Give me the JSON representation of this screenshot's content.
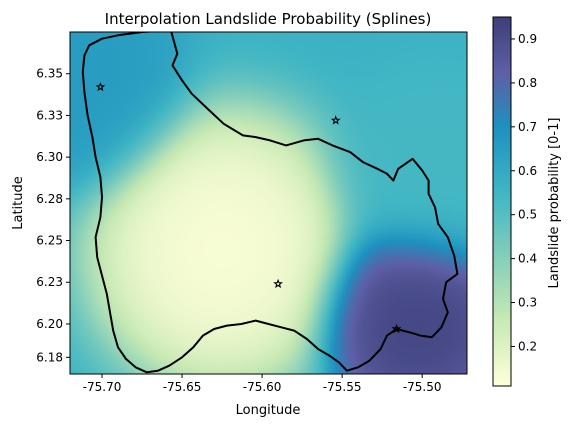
{
  "chart_data": {
    "type": "heatmap",
    "title": "Interpolation Landslide Probability (Splines)",
    "xlabel": "Longitude",
    "ylabel": "Latitude",
    "xlim": [
      -75.72,
      -75.472
    ],
    "ylim": [
      6.17,
      6.375
    ],
    "x_ticks": [
      {
        "value": -75.7,
        "label": "-75.70"
      },
      {
        "value": -75.65,
        "label": "-75.65"
      },
      {
        "value": -75.6,
        "label": "-75.60"
      },
      {
        "value": -75.55,
        "label": "-75.55"
      },
      {
        "value": -75.5,
        "label": "-75.50"
      }
    ],
    "y_ticks": [
      {
        "value": 6.18,
        "label": "6.18"
      },
      {
        "value": 6.2,
        "label": "6.20"
      },
      {
        "value": 6.225,
        "label": "6.23"
      },
      {
        "value": 6.25,
        "label": "6.25"
      },
      {
        "value": 6.275,
        "label": "6.28"
      },
      {
        "value": 6.3,
        "label": "6.30"
      },
      {
        "value": 6.325,
        "label": "6.33"
      },
      {
        "value": 6.35,
        "label": "6.35"
      }
    ],
    "colorbar": {
      "label": "Landslide probability [0-1]",
      "range": [
        0.11,
        0.95
      ],
      "ticks": [
        "0.2",
        "0.3",
        "0.4",
        "0.5",
        "0.6",
        "0.7",
        "0.8",
        "0.9"
      ],
      "colormap": "YlGnBu-like",
      "colors": [
        "#ffffd9",
        "#c7e9b4",
        "#7fcdbb",
        "#41b6c4",
        "#1d91c0",
        "#5e5fa6",
        "#3c3f78"
      ]
    },
    "points": [
      {
        "x": -75.701,
        "y": 6.342
      },
      {
        "x": -75.554,
        "y": 6.322
      },
      {
        "x": -75.59,
        "y": 6.224
      },
      {
        "x": -75.516,
        "y": 6.197
      }
    ],
    "field_centers": [
      {
        "x": -75.625,
        "y": 6.245,
        "value": 0.11,
        "spread": 0.05
      },
      {
        "x": -75.505,
        "y": 6.205,
        "value": 0.93,
        "spread": 0.035
      },
      {
        "x": -75.715,
        "y": 6.345,
        "value": 0.63,
        "spread": 0.04
      },
      {
        "x": -75.49,
        "y": 6.29,
        "value": 0.52,
        "spread": 0.04
      }
    ],
    "boundary": [
      [
        -75.708,
        6.367
      ],
      [
        -75.7,
        6.371
      ],
      [
        -75.69,
        6.373
      ],
      [
        -75.675,
        6.375
      ],
      [
        -75.657,
        6.376
      ],
      [
        -75.653,
        6.362
      ],
      [
        -75.656,
        6.355
      ],
      [
        -75.65,
        6.346
      ],
      [
        -75.644,
        6.338
      ],
      [
        -75.633,
        6.328
      ],
      [
        -75.624,
        6.32
      ],
      [
        -75.612,
        6.313
      ],
      [
        -75.604,
        6.312
      ],
      [
        -75.595,
        6.31
      ],
      [
        -75.585,
        6.307
      ],
      [
        -75.574,
        6.31
      ],
      [
        -75.565,
        6.311
      ],
      [
        -75.556,
        6.307
      ],
      [
        -75.545,
        6.303
      ],
      [
        -75.537,
        6.297
      ],
      [
        -75.528,
        6.293
      ],
      [
        -75.522,
        6.29
      ],
      [
        -75.518,
        6.286
      ],
      [
        -75.515,
        6.293
      ],
      [
        -75.506,
        6.299
      ],
      [
        -75.5,
        6.292
      ],
      [
        -75.496,
        6.286
      ],
      [
        -75.496,
        6.278
      ],
      [
        -75.492,
        6.27
      ],
      [
        -75.49,
        6.26
      ],
      [
        -75.484,
        6.252
      ],
      [
        -75.48,
        6.241
      ],
      [
        -75.478,
        6.23
      ],
      [
        -75.485,
        6.225
      ],
      [
        -75.487,
        6.215
      ],
      [
        -75.484,
        6.207
      ],
      [
        -75.488,
        6.198
      ],
      [
        -75.494,
        6.192
      ],
      [
        -75.501,
        6.193
      ],
      [
        -75.508,
        6.195
      ],
      [
        -75.516,
        6.197
      ],
      [
        -75.522,
        6.193
      ],
      [
        -75.526,
        6.185
      ],
      [
        -75.533,
        6.178
      ],
      [
        -75.54,
        6.174
      ],
      [
        -75.547,
        6.172
      ],
      [
        -75.552,
        6.177
      ],
      [
        -75.558,
        6.181
      ],
      [
        -75.565,
        6.185
      ],
      [
        -75.572,
        6.191
      ],
      [
        -75.58,
        6.196
      ],
      [
        -75.588,
        6.198
      ],
      [
        -75.596,
        6.2
      ],
      [
        -75.604,
        6.202
      ],
      [
        -75.613,
        6.2
      ],
      [
        -75.622,
        6.199
      ],
      [
        -75.63,
        6.197
      ],
      [
        -75.637,
        6.193
      ],
      [
        -75.643,
        6.186
      ],
      [
        -75.65,
        6.18
      ],
      [
        -75.658,
        6.175
      ],
      [
        -75.665,
        6.172
      ],
      [
        -75.672,
        6.171
      ],
      [
        -75.679,
        6.174
      ],
      [
        -75.685,
        6.179
      ],
      [
        -75.69,
        6.186
      ],
      [
        -75.693,
        6.196
      ],
      [
        -75.695,
        6.207
      ],
      [
        -75.697,
        6.218
      ],
      [
        -75.7,
        6.229
      ],
      [
        -75.703,
        6.24
      ],
      [
        -75.704,
        6.252
      ],
      [
        -75.701,
        6.264
      ],
      [
        -75.7,
        6.276
      ],
      [
        -75.701,
        6.288
      ],
      [
        -75.704,
        6.3
      ],
      [
        -75.706,
        6.312
      ],
      [
        -75.709,
        6.325
      ],
      [
        -75.711,
        6.339
      ],
      [
        -75.712,
        6.351
      ],
      [
        -75.711,
        6.361
      ],
      [
        -75.708,
        6.367
      ]
    ]
  }
}
